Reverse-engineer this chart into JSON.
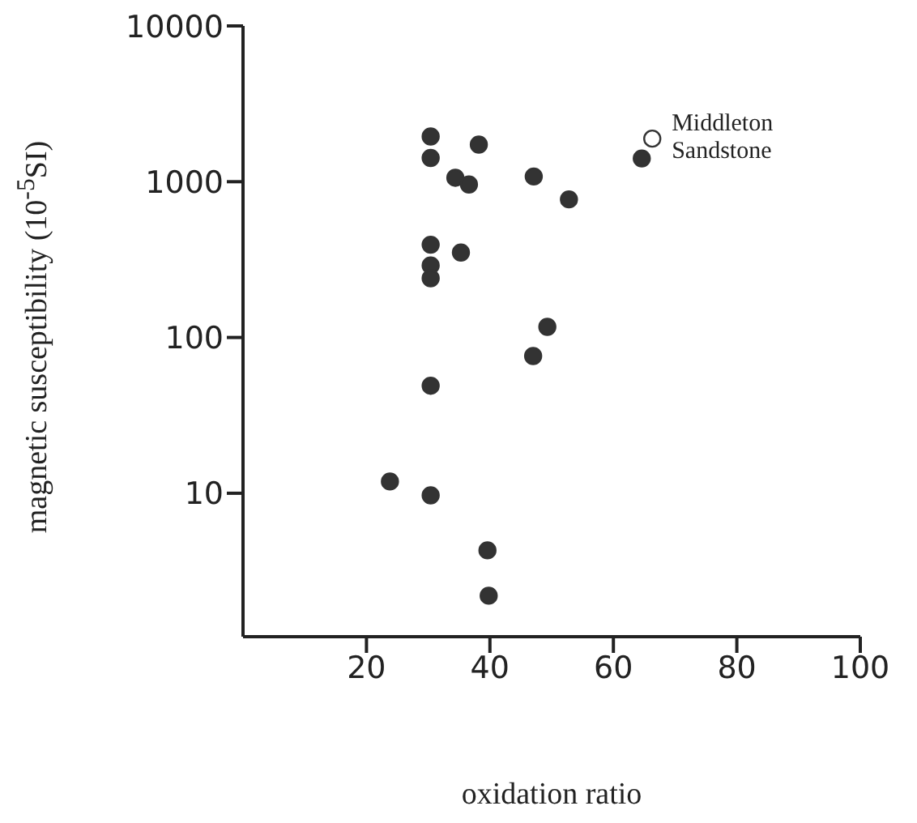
{
  "chart_data": {
    "type": "scatter",
    "xlabel": "oxidation ratio",
    "ylabel": "magnetic susceptibility (10$^{-5}$SI)",
    "xlim": [
      0,
      100
    ],
    "xticks": [
      20,
      40,
      60,
      80,
      100
    ],
    "ylim": [
      1.2,
      10000
    ],
    "yticks": [
      10,
      100,
      1000,
      10000
    ],
    "log": "y",
    "grid": false,
    "legend": false,
    "marker": "circle",
    "series": [
      {
        "color": "#333333",
        "x": [
          30.4,
          30.4,
          38.2,
          34.4,
          36.6,
          47.1,
          52.8,
          64.6,
          30.4,
          35.3,
          30.4,
          30.4,
          49.3,
          47,
          30.4,
          23.8,
          30.4,
          39.6,
          39.8
        ],
        "values": [
          1950,
          1420,
          1730,
          1060,
          960,
          1080,
          770,
          1410,
          394,
          351,
          290,
          240,
          117,
          76,
          49,
          11.9,
          9.7,
          4.3,
          2.2
        ]
      },
      {
        "color": "#ffffff",
        "x": [
          66.3
        ],
        "values": [
          1890
        ]
      }
    ],
    "annotations": [
      {
        "text": "Middleton Sandstone",
        "x": 66.3,
        "y": 1890
      }
    ]
  }
}
